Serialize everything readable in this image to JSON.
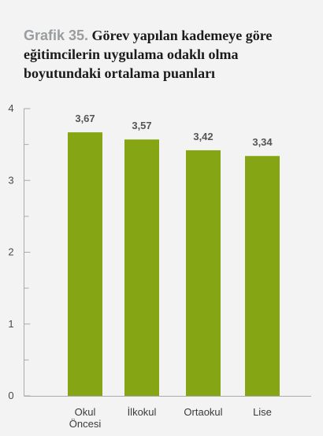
{
  "title": {
    "prefix": "Grafik 35.",
    "text": "Görev yapılan kademeye göre eğitimcilerin uygulama odaklı olma boyutundaki ortalama puanları"
  },
  "colors": {
    "bar": "#85a514",
    "axis": "#aaaaaa",
    "background": "#f3f3f3"
  },
  "chart_data": {
    "type": "bar",
    "title": "Görev yapılan kademeye göre eğitimcilerin uygulama odaklı olma boyutundaki ortalama puanları",
    "categories": [
      "Okul Öncesi",
      "İlkokul",
      "Ortaokul",
      "Lise"
    ],
    "category_lines": [
      [
        "Okul",
        "Öncesi"
      ],
      [
        "İlkokul"
      ],
      [
        "Ortaokul"
      ],
      [
        "Lise"
      ]
    ],
    "values": [
      3.67,
      3.57,
      3.42,
      3.34
    ],
    "value_labels": [
      "3,67",
      "3,57",
      "3,42",
      "3,34"
    ],
    "ylim": [
      0,
      4
    ],
    "yticks": [
      "0",
      "1",
      "2",
      "3",
      "4"
    ],
    "xlabel": "",
    "ylabel": "",
    "grid": false,
    "legend": "none"
  }
}
